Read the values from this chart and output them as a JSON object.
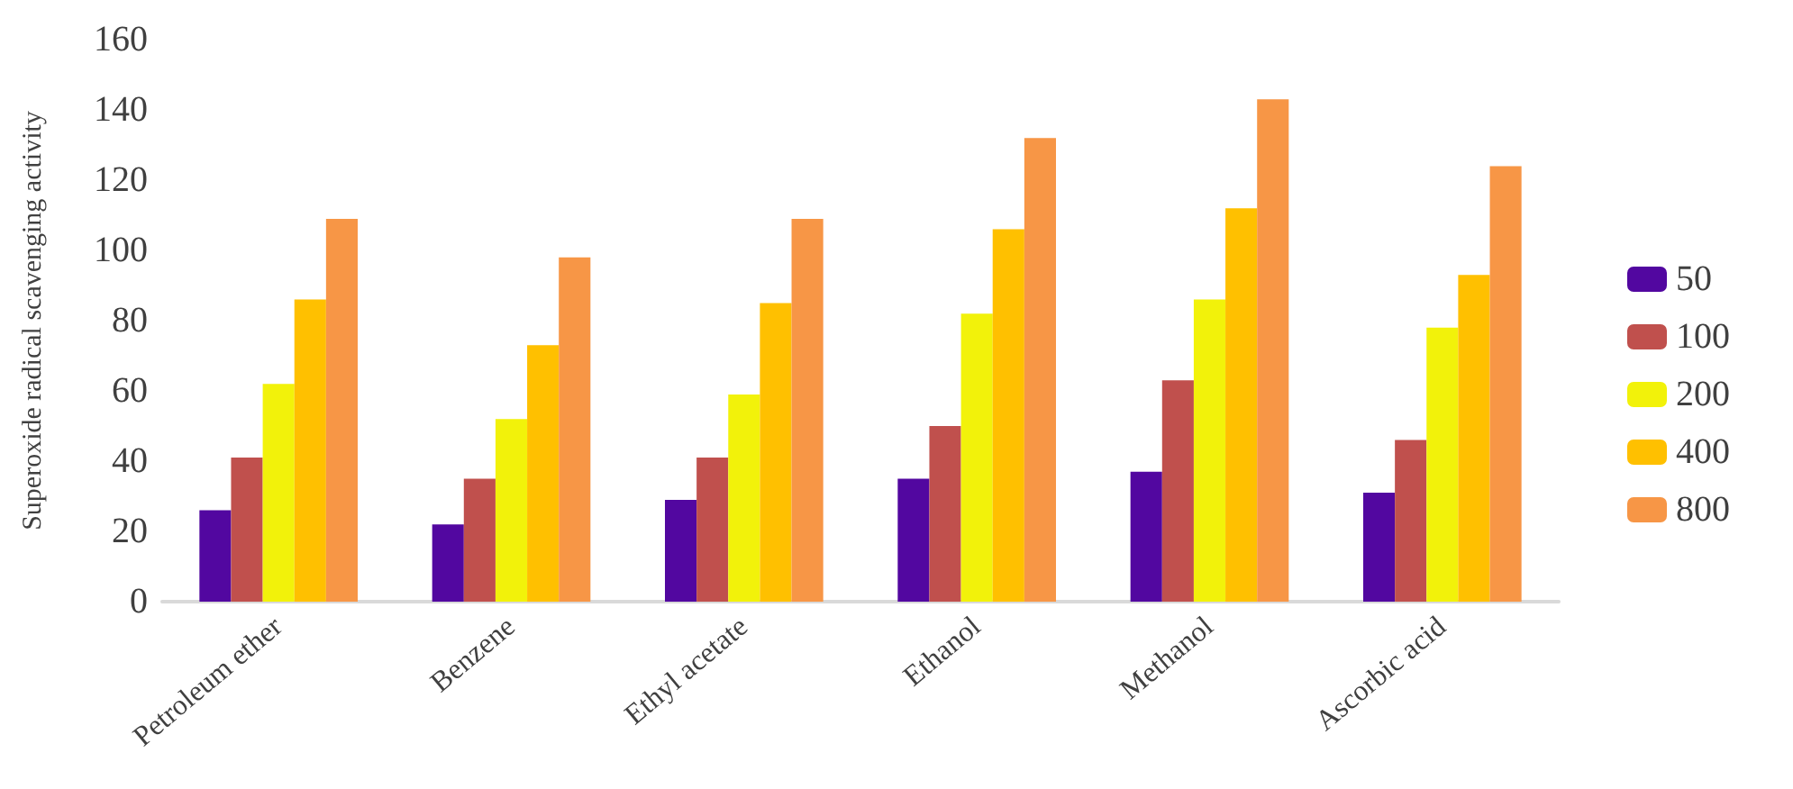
{
  "chart_data": {
    "type": "bar",
    "ylabel": "Superoxide radical scavenging activity",
    "categories": [
      "Petroleum ether",
      "Benzene",
      "Ethyl acetate",
      "Ethanol",
      "Methanol",
      "Ascorbic acid"
    ],
    "series": [
      {
        "name": "50",
        "color": "#5207a0",
        "values": [
          26,
          22,
          29,
          35,
          37,
          31
        ]
      },
      {
        "name": "100",
        "color": "#c0504d",
        "values": [
          41,
          35,
          41,
          50,
          63,
          46
        ]
      },
      {
        "name": "200",
        "color": "#f2f20a",
        "values": [
          62,
          52,
          59,
          82,
          86,
          78
        ]
      },
      {
        "name": "400",
        "color": "#ffc000",
        "values": [
          86,
          73,
          85,
          106,
          112,
          93
        ]
      },
      {
        "name": "800",
        "color": "#f79646",
        "values": [
          109,
          98,
          109,
          132,
          143,
          124
        ]
      }
    ],
    "ylim": [
      0,
      160
    ],
    "yticks": [
      0,
      20,
      40,
      60,
      80,
      100,
      120,
      140,
      160
    ],
    "grid": false,
    "legend": "right"
  }
}
